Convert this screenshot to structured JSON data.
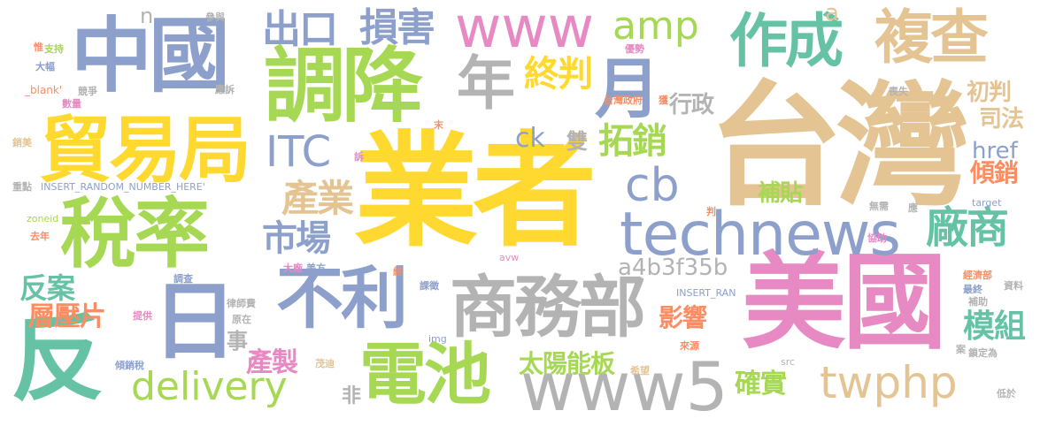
{
  "words": [
    {
      "text": "業者",
      "color": "#ffd92f"
    },
    {
      "text": "台灣",
      "color": "#e5c494"
    },
    {
      "text": "美國",
      "color": "#e78ac3"
    },
    {
      "text": "稅率",
      "color": "#a6d854"
    },
    {
      "text": "中國",
      "color": "#8da0cb"
    },
    {
      "text": "調降",
      "color": "#a6d854"
    },
    {
      "text": "貿易局",
      "color": "#ffd92f"
    },
    {
      "text": "technews",
      "color": "#8da0cb"
    },
    {
      "text": "www5",
      "color": "#b3b3b3"
    },
    {
      "text": "商務部",
      "color": "#b3b3b3"
    },
    {
      "text": "反",
      "color": "#66c2a5"
    },
    {
      "text": "電池",
      "color": "#a6d854"
    },
    {
      "text": "作成",
      "color": "#66c2a5"
    },
    {
      "text": "複查",
      "color": "#e5c494"
    },
    {
      "text": "不利",
      "color": "#8da0cb"
    },
    {
      "text": "www",
      "color": "#e78ac3"
    },
    {
      "text": "年",
      "color": "#b3b3b3"
    },
    {
      "text": "日",
      "color": "#8da0cb"
    },
    {
      "text": "twphp",
      "color": "#e5c494"
    },
    {
      "text": "delivery",
      "color": "#a6d854"
    },
    {
      "text": "月",
      "color": "#8da0cb"
    },
    {
      "text": "廠商",
      "color": "#66c2a5"
    },
    {
      "text": "cb",
      "color": "#8da0cb"
    },
    {
      "text": "ITC",
      "color": "#8da0cb"
    },
    {
      "text": "出口",
      "color": "#8da0cb"
    },
    {
      "text": "損害",
      "color": "#8da0cb"
    },
    {
      "text": "amp",
      "color": "#a6d854"
    },
    {
      "text": "終判",
      "color": "#ffd92f"
    },
    {
      "text": "產業",
      "color": "#e5c494"
    },
    {
      "text": "市場",
      "color": "#8da0cb"
    },
    {
      "text": "拓銷",
      "color": "#a6d854"
    },
    {
      "text": "a4b3f35b",
      "color": "#b3b3b3"
    },
    {
      "text": "模組",
      "color": "#66c2a5"
    },
    {
      "text": "太陽能板",
      "color": "#a6d854"
    },
    {
      "text": "反案",
      "color": "#66c2a5"
    },
    {
      "text": "層壓片",
      "color": "#fc8d62"
    },
    {
      "text": "產製",
      "color": "#e78ac3"
    },
    {
      "text": "影響",
      "color": "#fc8d62"
    },
    {
      "text": "確實",
      "color": "#a6d854"
    },
    {
      "text": "補貼",
      "color": "#a6d854"
    },
    {
      "text": "href",
      "color": "#8da0cb"
    },
    {
      "text": "傾銷",
      "color": "#fc8d62"
    },
    {
      "text": "司法",
      "color": "#e5c494"
    },
    {
      "text": "初判",
      "color": "#e5c494"
    },
    {
      "text": "行政",
      "color": "#b3b3b3"
    },
    {
      "text": "ck",
      "color": "#8da0cb"
    },
    {
      "text": "雙",
      "color": "#b3b3b3"
    },
    {
      "text": "事",
      "color": "#b3b3b3"
    },
    {
      "text": "非",
      "color": "#b3b3b3"
    },
    {
      "text": "n",
      "color": "#b3b3b3"
    },
    {
      "text": "a",
      "color": "#e5c494"
    },
    {
      "text": "參與",
      "color": "#b3b3b3"
    },
    {
      "text": "惟",
      "color": "#fc8d62"
    },
    {
      "text": "支持",
      "color": "#a6d854"
    },
    {
      "text": "大幅",
      "color": "#8da0cb"
    },
    {
      "text": "_blank'",
      "color": "#fc8d62"
    },
    {
      "text": "競爭",
      "color": "#b3b3b3"
    },
    {
      "text": "數量",
      "color": "#e78ac3"
    },
    {
      "text": "應訴",
      "color": "#b3b3b3"
    },
    {
      "text": "優勢",
      "color": "#e78ac3"
    },
    {
      "text": "台灣政府",
      "color": "#fc8d62"
    },
    {
      "text": "獲",
      "color": "#fc8d62"
    },
    {
      "text": "喪失",
      "color": "#b3b3b3"
    },
    {
      "text": "末",
      "color": "#fc8d62"
    },
    {
      "text": "訴",
      "color": "#e78ac3"
    },
    {
      "text": "銷美",
      "color": "#e5c494"
    },
    {
      "text": "重點",
      "color": "#b3b3b3"
    },
    {
      "text": "INSERT_RANDOM_NUMBER_HERE'",
      "color": "#8da0cb"
    },
    {
      "text": "zoneid",
      "color": "#a6d854"
    },
    {
      "text": "去年",
      "color": "#fc8d62"
    },
    {
      "text": "無需",
      "color": "#b3b3b3"
    },
    {
      "text": "應",
      "color": "#b3b3b3"
    },
    {
      "text": "target",
      "color": "#8da0cb"
    },
    {
      "text": "判",
      "color": "#fc8d62"
    },
    {
      "text": "協助",
      "color": "#e78ac3"
    },
    {
      "text": "大廠",
      "color": "#e78ac3"
    },
    {
      "text": "美方",
      "color": "#8da0cb"
    },
    {
      "text": "avw",
      "color": "#e78ac3"
    },
    {
      "text": "終",
      "color": "#fc8d62"
    },
    {
      "text": "經濟部",
      "color": "#fc8d62"
    },
    {
      "text": "資料",
      "color": "#b3b3b3"
    },
    {
      "text": "最終",
      "color": "#8da0cb"
    },
    {
      "text": "補助",
      "color": "#b3b3b3"
    },
    {
      "text": "調查",
      "color": "#8da0cb"
    },
    {
      "text": "課徵",
      "color": "#8da0cb"
    },
    {
      "text": "INSERT_RAN",
      "color": "#8da0cb"
    },
    {
      "text": "律師費",
      "color": "#b3b3b3"
    },
    {
      "text": "原在",
      "color": "#b3b3b3"
    },
    {
      "text": "提供",
      "color": "#e78ac3"
    },
    {
      "text": "img",
      "color": "#8da0cb"
    },
    {
      "text": "來源",
      "color": "#fc8d62"
    },
    {
      "text": "案",
      "color": "#b3b3b3"
    },
    {
      "text": "鎖定為",
      "color": "#b3b3b3"
    },
    {
      "text": "傾銷稅",
      "color": "#8da0cb"
    },
    {
      "text": "茂迪",
      "color": "#e5c494"
    },
    {
      "text": "希望",
      "color": "#e5c494"
    },
    {
      "text": "src",
      "color": "#b3b3b3"
    },
    {
      "text": "低於",
      "color": "#b3b3b3"
    }
  ]
}
